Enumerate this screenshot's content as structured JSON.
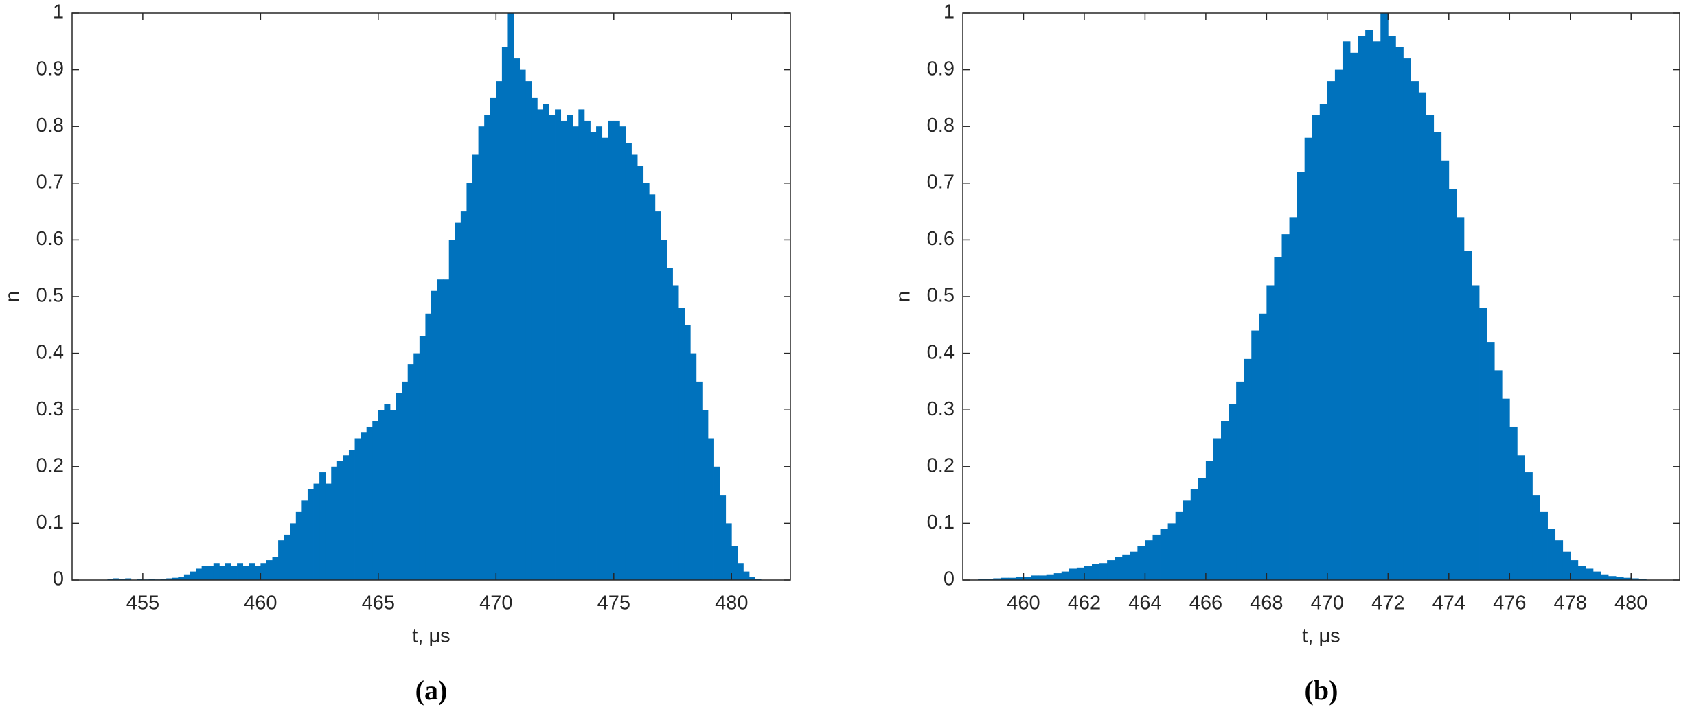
{
  "chart_data": [
    {
      "type": "histogram",
      "xlabel": "t, μs",
      "ylabel": "n",
      "caption": "(a)",
      "color": "#0072bd",
      "bins": [
        453.5,
        453.75,
        454,
        454.25,
        454.5,
        454.75,
        455,
        455.25,
        455.5,
        455.75,
        456,
        456.25,
        456.5,
        456.75,
        457,
        457.25,
        457.5,
        457.75,
        458,
        458.25,
        458.5,
        458.75,
        459,
        459.25,
        459.5,
        459.75,
        460,
        460.25,
        460.5,
        460.75,
        461,
        461.25,
        461.5,
        461.75,
        462,
        462.25,
        462.5,
        462.75,
        463,
        463.25,
        463.5,
        463.75,
        464,
        464.25,
        464.5,
        464.75,
        465,
        465.25,
        465.5,
        465.75,
        466,
        466.25,
        466.5,
        466.75,
        467,
        467.25,
        467.5,
        467.75,
        468,
        468.25,
        468.5,
        468.75,
        469,
        469.25,
        469.5,
        469.75,
        470,
        470.25,
        470.5,
        470.75,
        471,
        471.25,
        471.5,
        471.75,
        472,
        472.25,
        472.5,
        472.75,
        473,
        473.25,
        473.5,
        473.75,
        474,
        474.25,
        474.5,
        474.75,
        475,
        475.25,
        475.5,
        475.75,
        476,
        476.25,
        476.5,
        476.75,
        477,
        477.25,
        477.5,
        477.75,
        478,
        478.25,
        478.5,
        478.75,
        479,
        479.25,
        479.5,
        479.75,
        480,
        480.25,
        480.5,
        480.75,
        481,
        481.25
      ],
      "values": [
        0.002,
        0.003,
        0.002,
        0.003,
        0,
        0.002,
        0.001,
        0.002,
        0.001,
        0.002,
        0.003,
        0.004,
        0.005,
        0.01,
        0.015,
        0.02,
        0.025,
        0.025,
        0.03,
        0.025,
        0.03,
        0.025,
        0.03,
        0.025,
        0.03,
        0.025,
        0.03,
        0.035,
        0.04,
        0.07,
        0.08,
        0.1,
        0.12,
        0.14,
        0.16,
        0.17,
        0.19,
        0.17,
        0.2,
        0.21,
        0.22,
        0.23,
        0.25,
        0.26,
        0.27,
        0.28,
        0.3,
        0.31,
        0.3,
        0.33,
        0.35,
        0.38,
        0.4,
        0.43,
        0.47,
        0.51,
        0.53,
        0.53,
        0.6,
        0.63,
        0.65,
        0.7,
        0.75,
        0.8,
        0.82,
        0.85,
        0.88,
        0.94,
        1,
        0.92,
        0.9,
        0.88,
        0.85,
        0.83,
        0.84,
        0.82,
        0.83,
        0.81,
        0.82,
        0.8,
        0.83,
        0.81,
        0.79,
        0.8,
        0.78,
        0.81,
        0.81,
        0.8,
        0.77,
        0.75,
        0.73,
        0.7,
        0.68,
        0.65,
        0.6,
        0.55,
        0.52,
        0.48,
        0.45,
        0.4,
        0.35,
        0.3,
        0.25,
        0.2,
        0.15,
        0.1,
        0.06,
        0.03,
        0.015,
        0.005,
        0.002
      ],
      "xlim": [
        452,
        482.5
      ],
      "xticks": [
        455,
        460,
        465,
        470,
        475,
        480
      ],
      "ylim": [
        0,
        1
      ],
      "yticks": [
        0,
        0.1,
        0.2,
        0.3,
        0.4,
        0.5,
        0.6,
        0.7,
        0.8,
        0.9,
        1
      ]
    },
    {
      "type": "histogram",
      "xlabel": "t, μs",
      "ylabel": "n",
      "caption": "(b)",
      "color": "#0072bd",
      "bins": [
        458.5,
        458.75,
        459,
        459.25,
        459.5,
        459.75,
        460,
        460.25,
        460.5,
        460.75,
        461,
        461.25,
        461.5,
        461.75,
        462,
        462.25,
        462.5,
        462.75,
        463,
        463.25,
        463.5,
        463.75,
        464,
        464.25,
        464.5,
        464.75,
        465,
        465.25,
        465.5,
        465.75,
        466,
        466.25,
        466.5,
        466.75,
        467,
        467.25,
        467.5,
        467.75,
        468,
        468.25,
        468.5,
        468.75,
        469,
        469.25,
        469.5,
        469.75,
        470,
        470.25,
        470.5,
        470.75,
        471,
        471.25,
        471.5,
        471.75,
        472,
        472.25,
        472.5,
        472.75,
        473,
        473.25,
        473.5,
        473.75,
        474,
        474.25,
        474.5,
        474.75,
        475,
        475.25,
        475.5,
        475.75,
        476,
        476.25,
        476.5,
        476.75,
        477,
        477.25,
        477.5,
        477.75,
        478,
        478.25,
        478.5,
        478.75,
        479,
        479.25,
        479.5,
        479.75,
        480,
        480.25,
        480.5
      ],
      "values": [
        0.002,
        0.002,
        0.003,
        0.004,
        0.004,
        0.005,
        0.006,
        0.008,
        0.008,
        0.01,
        0.012,
        0.015,
        0.02,
        0.022,
        0.025,
        0.028,
        0.03,
        0.035,
        0.04,
        0.045,
        0.05,
        0.06,
        0.07,
        0.08,
        0.09,
        0.1,
        0.12,
        0.14,
        0.16,
        0.18,
        0.21,
        0.25,
        0.28,
        0.31,
        0.35,
        0.39,
        0.44,
        0.47,
        0.52,
        0.57,
        0.61,
        0.64,
        0.72,
        0.78,
        0.82,
        0.84,
        0.88,
        0.9,
        0.95,
        0.93,
        0.96,
        0.97,
        0.95,
        1,
        0.96,
        0.94,
        0.92,
        0.88,
        0.86,
        0.82,
        0.79,
        0.74,
        0.69,
        0.64,
        0.58,
        0.52,
        0.48,
        0.42,
        0.37,
        0.32,
        0.27,
        0.22,
        0.19,
        0.15,
        0.12,
        0.09,
        0.07,
        0.05,
        0.035,
        0.025,
        0.02,
        0.015,
        0.01,
        0.007,
        0.005,
        0.004,
        0.003,
        0.002
      ],
      "xlim": [
        458,
        481.6
      ],
      "xticks": [
        460,
        462,
        464,
        466,
        468,
        470,
        472,
        474,
        476,
        478,
        480
      ],
      "ylim": [
        0,
        1
      ],
      "yticks": [
        0,
        0.1,
        0.2,
        0.3,
        0.4,
        0.5,
        0.6,
        0.7,
        0.8,
        0.9,
        1
      ]
    }
  ]
}
